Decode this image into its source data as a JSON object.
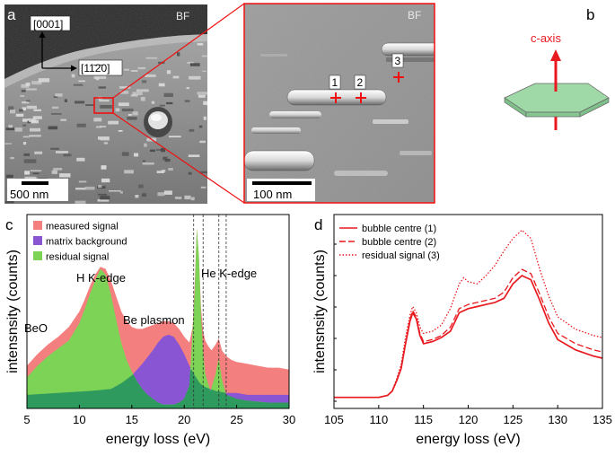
{
  "panels": {
    "a": {
      "letter": "a",
      "mode": "BF",
      "scalebar": "500 nm",
      "axis_c": "[0001]",
      "axis_a": "[11̄2̄0]"
    },
    "inset": {
      "mode": "BF",
      "scalebar": "100 nm",
      "markers": [
        "1",
        "2",
        "3"
      ]
    },
    "b": {
      "letter": "b",
      "label": "c-axis"
    },
    "c": {
      "letter": "c"
    },
    "d": {
      "letter": "d"
    }
  },
  "colors": {
    "measured": "#f47f7f",
    "matrix": "#8a55d2",
    "residual": "#7dd355",
    "overlap": "#2e9a5e",
    "line_red": "#e8191f",
    "hexagon": "#9fd9a7"
  },
  "chart_data": [
    {
      "panel": "c",
      "type": "area",
      "xlabel": "energy loss (eV)",
      "ylabel": "intensnsity (counts)",
      "xlim": [
        5,
        30
      ],
      "xticks": [
        5,
        10,
        15,
        20,
        25,
        30
      ],
      "grid": false,
      "legend_position": "top-left",
      "annotations": [
        "BeO",
        "H K-edge",
        "Be plasmon",
        "He K-edge"
      ],
      "vlines": [
        20.9,
        21.8,
        23.3,
        24.0
      ],
      "series": [
        {
          "name": "measured signal",
          "x": [
            5,
            6,
            7,
            8,
            9,
            10,
            10.5,
            11,
            11.5,
            12,
            12.5,
            13,
            13.5,
            14,
            14.5,
            15,
            15.5,
            16,
            16.5,
            17,
            17.5,
            18,
            18.5,
            19,
            19.5,
            20,
            20.5,
            20.8,
            21.0,
            21.2,
            21.4,
            21.6,
            21.8,
            22.0,
            22.3,
            22.6,
            23.0,
            23.3,
            23.6,
            24.0,
            24.5,
            25,
            26,
            27,
            28,
            29,
            30
          ],
          "y": [
            0.22,
            0.28,
            0.33,
            0.37,
            0.42,
            0.5,
            0.56,
            0.63,
            0.69,
            0.73,
            0.72,
            0.66,
            0.58,
            0.5,
            0.45,
            0.42,
            0.41,
            0.41,
            0.42,
            0.43,
            0.44,
            0.45,
            0.45,
            0.44,
            0.41,
            0.37,
            0.34,
            0.42,
            0.65,
            0.93,
            0.78,
            0.52,
            0.4,
            0.35,
            0.32,
            0.3,
            0.33,
            0.36,
            0.3,
            0.27,
            0.25,
            0.24,
            0.23,
            0.22,
            0.21,
            0.21,
            0.2
          ]
        },
        {
          "name": "residual signal",
          "x": [
            5,
            6,
            7,
            8,
            9,
            10,
            10.5,
            11,
            11.5,
            12,
            12.5,
            13,
            13.5,
            14,
            14.5,
            15,
            15.5,
            16,
            16.5,
            17,
            17.5,
            18,
            18.5,
            19,
            19.5,
            20,
            20.5,
            21.0,
            21.2,
            21.4,
            21.6,
            21.8,
            22.0,
            22.5,
            23.0,
            23.3,
            23.6,
            24.0,
            25,
            26,
            28,
            30
          ],
          "y": [
            0.16,
            0.22,
            0.27,
            0.31,
            0.35,
            0.44,
            0.51,
            0.59,
            0.66,
            0.72,
            0.69,
            0.59,
            0.46,
            0.34,
            0.25,
            0.19,
            0.14,
            0.1,
            0.07,
            0.05,
            0.03,
            0.02,
            0.02,
            0.02,
            0.03,
            0.05,
            0.12,
            0.6,
            0.93,
            0.78,
            0.48,
            0.3,
            0.18,
            0.09,
            0.18,
            0.26,
            0.15,
            0.07,
            0.05,
            0.04,
            0.03,
            0.03
          ]
        },
        {
          "name": "matrix background",
          "x": [
            5,
            8,
            11,
            13,
            14,
            15,
            16,
            17,
            17.5,
            18,
            18.5,
            19,
            19.5,
            20,
            20.5,
            21,
            21.5,
            22,
            23,
            24,
            25,
            26,
            28,
            30
          ],
          "y": [
            0.07,
            0.08,
            0.09,
            0.1,
            0.13,
            0.17,
            0.23,
            0.3,
            0.34,
            0.37,
            0.38,
            0.37,
            0.33,
            0.28,
            0.22,
            0.17,
            0.13,
            0.11,
            0.09,
            0.08,
            0.08,
            0.07,
            0.07,
            0.07
          ]
        }
      ]
    },
    {
      "panel": "d",
      "type": "line",
      "xlabel": "energy loss (eV)",
      "ylabel": "intensnsity (counts)",
      "xlim": [
        105,
        135
      ],
      "xticks": [
        105,
        110,
        115,
        120,
        125,
        130,
        135
      ],
      "grid": false,
      "legend_position": "top-left",
      "series": [
        {
          "name": "bubble centre (1)",
          "style": "solid",
          "x": [
            105,
            108,
            110,
            111,
            111.5,
            112,
            112.5,
            113,
            113.5,
            113.8,
            114.2,
            114.6,
            115,
            116,
            117,
            118,
            119,
            120,
            121,
            122,
            123,
            124,
            125,
            126,
            127,
            128,
            129,
            130,
            132,
            134,
            135
          ],
          "y": [
            0.01,
            0.01,
            0.01,
            0.02,
            0.04,
            0.09,
            0.15,
            0.27,
            0.38,
            0.42,
            0.39,
            0.31,
            0.27,
            0.28,
            0.3,
            0.33,
            0.42,
            0.44,
            0.45,
            0.46,
            0.47,
            0.49,
            0.56,
            0.6,
            0.58,
            0.48,
            0.37,
            0.29,
            0.24,
            0.21,
            0.2
          ]
        },
        {
          "name": "bubble centre (2)",
          "style": "dashed",
          "x": [
            105,
            108,
            110,
            111,
            111.5,
            112,
            112.5,
            113,
            113.5,
            113.8,
            114.2,
            114.6,
            115,
            116,
            117,
            118,
            119,
            120,
            121,
            122,
            123,
            124,
            125,
            126,
            127,
            128,
            129,
            130,
            132,
            134,
            135
          ],
          "y": [
            0.01,
            0.01,
            0.01,
            0.02,
            0.04,
            0.09,
            0.15,
            0.27,
            0.39,
            0.43,
            0.4,
            0.32,
            0.28,
            0.29,
            0.31,
            0.35,
            0.44,
            0.46,
            0.47,
            0.48,
            0.49,
            0.52,
            0.59,
            0.63,
            0.61,
            0.51,
            0.4,
            0.32,
            0.27,
            0.24,
            0.23
          ]
        },
        {
          "name": "residual signal (3)",
          "style": "dotted",
          "x": [
            105,
            108,
            110,
            111,
            111.5,
            112,
            112.5,
            113,
            113.5,
            113.8,
            114.2,
            114.6,
            115,
            116,
            117,
            118,
            119,
            119.5,
            120,
            121,
            122,
            123,
            124,
            125,
            126,
            127,
            128,
            129,
            130,
            132,
            134,
            135
          ],
          "y": [
            0.01,
            0.01,
            0.01,
            0.02,
            0.04,
            0.1,
            0.17,
            0.3,
            0.41,
            0.45,
            0.42,
            0.35,
            0.32,
            0.33,
            0.36,
            0.44,
            0.56,
            0.59,
            0.57,
            0.56,
            0.6,
            0.65,
            0.72,
            0.78,
            0.82,
            0.78,
            0.63,
            0.5,
            0.4,
            0.34,
            0.31,
            0.3
          ]
        }
      ]
    }
  ]
}
